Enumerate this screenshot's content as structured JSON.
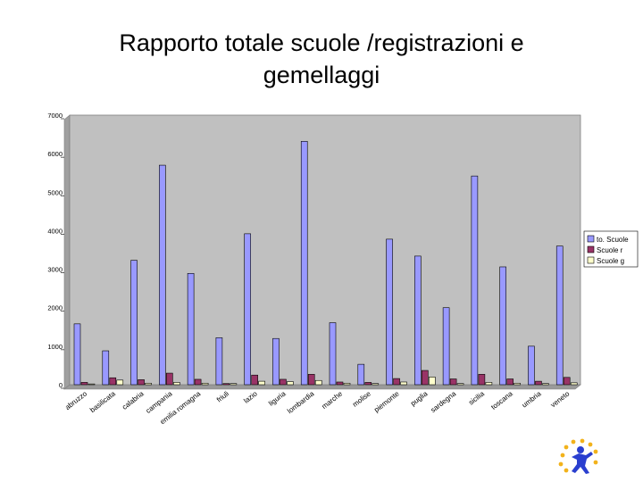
{
  "slide": {
    "title_line1": "Rapporto totale scuole /registrazioni e",
    "title_line2": "gemellaggi"
  },
  "chart_data": {
    "type": "bar",
    "title": "",
    "xlabel": "",
    "ylabel": "",
    "ylim": [
      0,
      7000
    ],
    "yticks": [
      "0",
      "1000",
      "2000",
      "3000",
      "4000",
      "5000",
      "6000",
      "7000"
    ],
    "grid": false,
    "legend_position": "right",
    "categories": [
      "abruzzo",
      "basilicata",
      "calabria",
      "campania",
      "emilia romagna",
      "friuli",
      "lazio",
      "liguria",
      "lombardia",
      "marche",
      "molise",
      "piemonte",
      "puglia",
      "sardegna",
      "sicilia",
      "toscana",
      "umbria",
      "veneto"
    ],
    "series": [
      {
        "name": "to. Scuole",
        "color": "#9999ff",
        "values": [
          1580,
          880,
          3230,
          5700,
          2890,
          1220,
          3920,
          1200,
          6320,
          1610,
          530,
          3780,
          3340,
          2000,
          5420,
          3060,
          1000,
          3600
        ]
      },
      {
        "name": "Scuole r",
        "color": "#993366",
        "values": [
          60,
          180,
          130,
          300,
          140,
          30,
          250,
          140,
          270,
          70,
          60,
          160,
          370,
          150,
          270,
          150,
          90,
          190
        ]
      },
      {
        "name": "Scuole g",
        "color": "#ffffcc",
        "values": [
          20,
          120,
          40,
          60,
          40,
          30,
          90,
          80,
          110,
          40,
          30,
          70,
          200,
          30,
          60,
          40,
          30,
          50
        ]
      }
    ],
    "colors": {
      "plot_background": "#c0c0c0",
      "frame": "#808080"
    }
  }
}
